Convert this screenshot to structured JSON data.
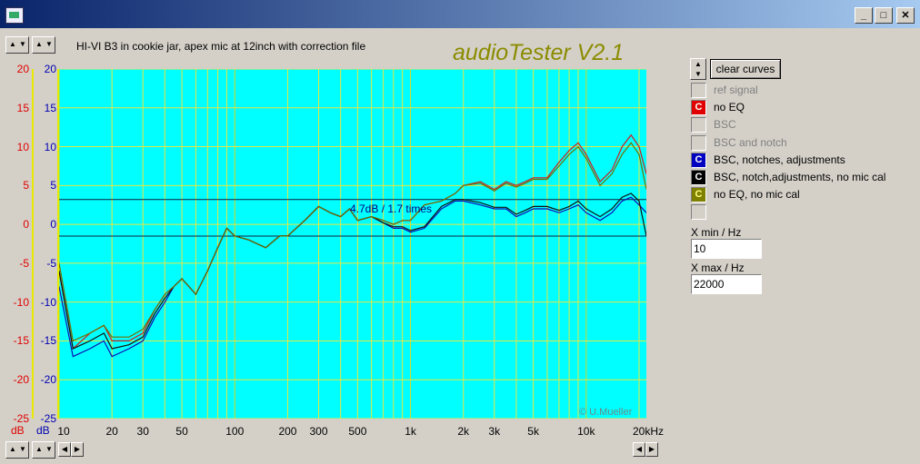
{
  "window": {
    "minimize": "_",
    "maximize": "□",
    "close": "✕"
  },
  "plot": {
    "title": "HI-VI B3 in cookie jar, apex mic at 12inch with correction file",
    "brand": "audioTester V2.1",
    "copyright": "© U.Mueller",
    "marker_text": "4.7dB / 1.7 times",
    "marker_lines_db": [
      3.2,
      -1.5
    ]
  },
  "axis": {
    "left_label": "dB",
    "right_label": "dB",
    "y_ticks": [
      "20",
      "15",
      "10",
      "5",
      "0",
      "-5",
      "-10",
      "-15",
      "-20",
      "-25"
    ],
    "x_ticks": [
      "10",
      "20",
      "30",
      "50",
      "100",
      "200",
      "300",
      "500",
      "1k",
      "2k",
      "3k",
      "5k",
      "10k",
      "20kHz"
    ]
  },
  "controls": {
    "clear_label": "clear curves",
    "xmin_label": "X min / Hz",
    "xmin_value": "10",
    "xmax_label": "X max / Hz",
    "xmax_value": "22000"
  },
  "legend": [
    {
      "label": "ref signal",
      "swatch": "",
      "color": "#d4d0c8",
      "text_color": "#808080"
    },
    {
      "label": "no EQ",
      "swatch": "C",
      "color": "#e00000",
      "text_color": "#000000"
    },
    {
      "label": "BSC",
      "swatch": "",
      "color": "#d4d0c8",
      "text_color": "#808080"
    },
    {
      "label": "BSC and notch",
      "swatch": "",
      "color": "#d4d0c8",
      "text_color": "#808080"
    },
    {
      "label": "BSC, notches, adjustments",
      "swatch": "C",
      "color": "#0000c0",
      "text_color": "#000000"
    },
    {
      "label": "BSC, notch,adjustments, no mic cal",
      "swatch": "C",
      "color": "#000000",
      "text_color": "#000000"
    },
    {
      "label": "no EQ, no mic cal",
      "swatch": "C",
      "color": "#808000",
      "text_color": "#000000"
    },
    {
      "label": "",
      "swatch": "",
      "color": "#d4d0c8",
      "text_color": "#000000"
    }
  ],
  "chart_data": {
    "type": "line",
    "xscale": "log",
    "xlim": [
      10,
      22000
    ],
    "ylim": [
      -25,
      20
    ],
    "ylabel": "dB",
    "x": [
      10,
      12,
      15,
      18,
      20,
      25,
      30,
      35,
      40,
      45,
      50,
      60,
      70,
      80,
      90,
      100,
      120,
      150,
      180,
      200,
      250,
      300,
      350,
      400,
      450,
      500,
      600,
      700,
      800,
      900,
      1000,
      1200,
      1500,
      1800,
      2000,
      2500,
      3000,
      3500,
      4000,
      4500,
      5000,
      6000,
      7000,
      8000,
      9000,
      10000,
      12000,
      14000,
      16000,
      18000,
      20000,
      22000
    ],
    "series": [
      {
        "name": "no EQ",
        "color": "#cc2020",
        "values": [
          -6,
          -16,
          -14,
          -13,
          -15,
          -15,
          -14,
          -11,
          -9,
          -8,
          -7,
          -9,
          -6,
          -3,
          -0.5,
          -1.5,
          -2,
          -3,
          -1.5,
          -1.5,
          0.5,
          2.3,
          1.5,
          1,
          2,
          0.5,
          1,
          0.5,
          0,
          0.5,
          0.5,
          2.5,
          3,
          4,
          5,
          5.5,
          4.5,
          5.5,
          5,
          5.5,
          6,
          6,
          8,
          9.5,
          10.5,
          9,
          5.5,
          7,
          10,
          11.5,
          10,
          6.5
        ]
      },
      {
        "name": "BSC, notches, adjustments",
        "color": "#1010b0",
        "values": [
          -8,
          -17,
          -16,
          -15,
          -17,
          -16,
          -15,
          -12,
          -10,
          -8,
          -7,
          -9,
          -6,
          -3,
          -0.5,
          -1.5,
          -2,
          -3,
          -1.5,
          -1.5,
          0.5,
          2.3,
          1.5,
          1,
          2,
          0.5,
          1,
          0.2,
          -0.5,
          -0.5,
          -1,
          -0.5,
          2,
          3,
          3,
          2.5,
          2,
          2,
          1,
          1.5,
          2,
          2,
          1.5,
          2,
          2.5,
          1.5,
          0.5,
          1.5,
          3,
          3.5,
          2.5,
          1.5
        ]
      },
      {
        "name": "BSC, notch,adjustments, no mic cal",
        "color": "#101010",
        "values": [
          -6,
          -16,
          -15,
          -14,
          -16,
          -15.5,
          -14.5,
          -11.5,
          -9.5,
          -8,
          -7,
          -9,
          -6,
          -3,
          -0.5,
          -1.5,
          -2,
          -3,
          -1.5,
          -1.5,
          0.5,
          2.3,
          1.5,
          1,
          2,
          0.5,
          1,
          0.2,
          -0.3,
          -0.3,
          -0.8,
          -0.3,
          2.3,
          3.2,
          3.2,
          2.8,
          2.2,
          2.2,
          1.3,
          1.8,
          2.3,
          2.3,
          1.8,
          2.3,
          3,
          2,
          1,
          2,
          3.5,
          4,
          3,
          -1.5
        ]
      },
      {
        "name": "no EQ, no mic cal",
        "color": "#707000",
        "values": [
          -5,
          -15,
          -14,
          -13,
          -14.5,
          -14.5,
          -13.5,
          -11,
          -9,
          -8,
          -7,
          -9,
          -6,
          -3,
          -0.5,
          -1.5,
          -2,
          -3,
          -1.5,
          -1.5,
          0.5,
          2.3,
          1.5,
          1,
          2,
          0.5,
          1,
          0.5,
          0,
          0.5,
          0.5,
          2.5,
          3,
          4,
          5,
          5.3,
          4.3,
          5.3,
          4.8,
          5.3,
          5.8,
          5.8,
          7.5,
          9,
          10,
          8.5,
          5,
          6.5,
          9,
          10.5,
          9,
          4.5
        ]
      }
    ]
  }
}
